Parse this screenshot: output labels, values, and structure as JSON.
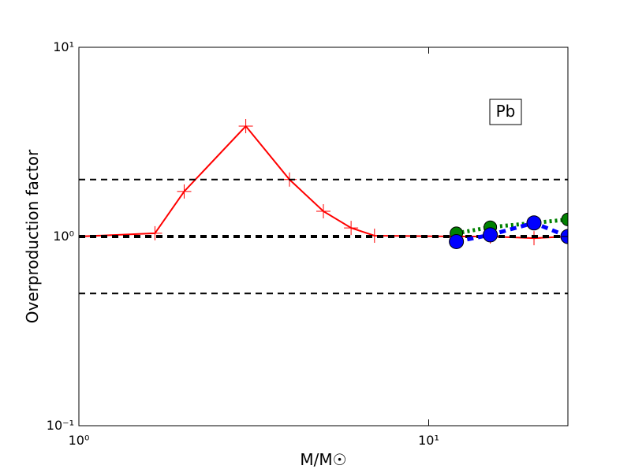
{
  "chart_data": {
    "type": "line",
    "xlabel": "M/M☉",
    "ylabel": "Overproduction factor",
    "annotation": "Pb",
    "xscale": "log",
    "yscale": "log",
    "xlim": [
      1,
      25
    ],
    "ylim": [
      0.1,
      10
    ],
    "xticks": [
      {
        "value": 1,
        "label": "10⁰"
      },
      {
        "value": 10,
        "label": "10¹"
      }
    ],
    "yticks": [
      {
        "value": 0.1,
        "label": "10⁻¹"
      },
      {
        "value": 1,
        "label": "10⁰"
      },
      {
        "value": 10,
        "label": "10¹"
      }
    ],
    "hlines": [
      {
        "value": 2,
        "linewidth": 2
      },
      {
        "value": 1,
        "linewidth": 4
      },
      {
        "value": 0.5,
        "linewidth": 2
      }
    ],
    "series": [
      {
        "color": "#ff0000",
        "linestyle": "solid",
        "marker": "plus",
        "x": [
          1,
          1.65,
          2,
          3,
          4,
          5,
          6,
          7,
          12,
          15,
          20,
          25
        ],
        "values": [
          1.0,
          1.04,
          1.73,
          3.83,
          2.0,
          1.36,
          1.11,
          1.01,
          1.0,
          1.0,
          0.98,
          1.0
        ]
      },
      {
        "color": "#008000",
        "linestyle": "dotted",
        "marker": "circle",
        "x": [
          12,
          15,
          20,
          25
        ],
        "values": [
          1.04,
          1.12,
          1.18,
          1.23
        ]
      },
      {
        "color": "#0000ff",
        "linestyle": "dashed",
        "marker": "circle",
        "x": [
          12,
          15,
          20,
          25
        ],
        "values": [
          0.94,
          1.02,
          1.18,
          1.0
        ]
      }
    ]
  }
}
